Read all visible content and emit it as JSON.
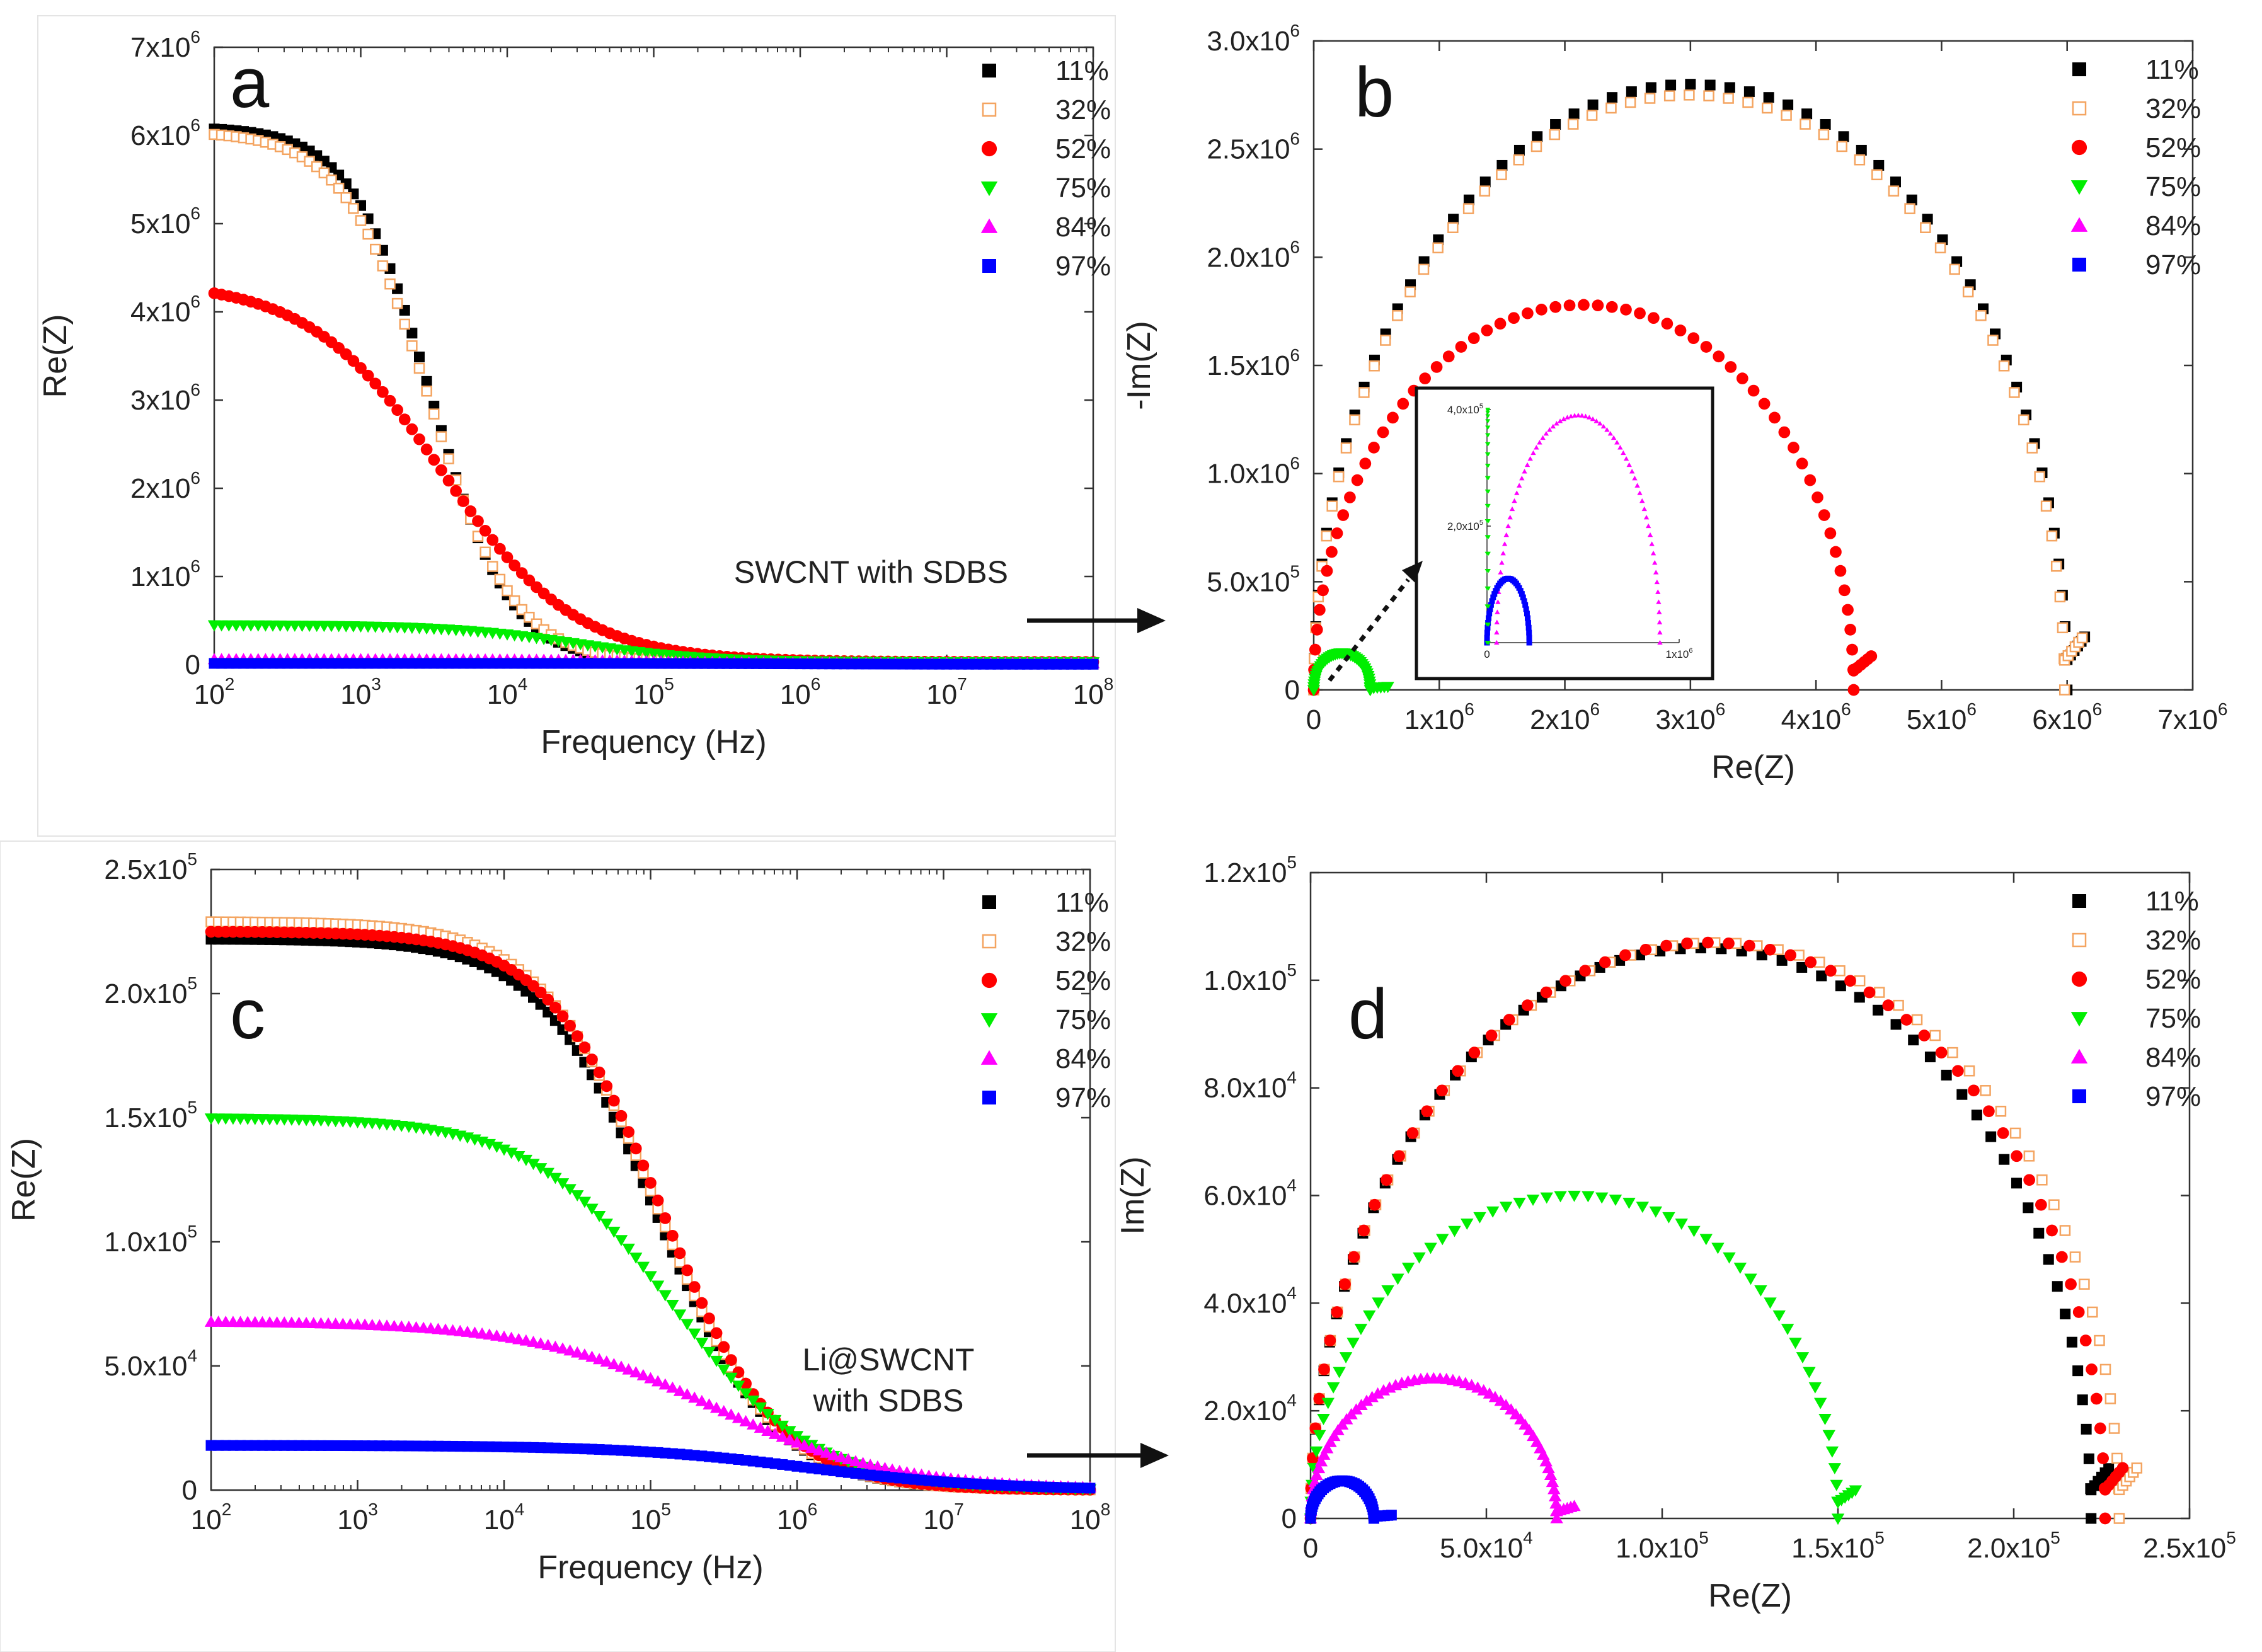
{
  "chart_data": [
    {
      "panel": "a",
      "type": "scatter",
      "xscale": "log",
      "xlabel": "Frequency (Hz)",
      "ylabel": "Re(Z)",
      "xlim": [
        100,
        100000000
      ],
      "ylim": [
        0,
        7000000
      ],
      "xticks": [
        {
          "base": "10",
          "exp": "2"
        },
        {
          "base": "10",
          "exp": "3"
        },
        {
          "base": "10",
          "exp": "4"
        },
        {
          "base": "10",
          "exp": "5"
        },
        {
          "base": "10",
          "exp": "6"
        },
        {
          "base": "10",
          "exp": "7"
        },
        {
          "base": "10",
          "exp": "8"
        }
      ],
      "yticks": [
        {
          "v": 0,
          "m": "0",
          "e": ""
        },
        {
          "v": 1000000,
          "m": "1x10",
          "e": "6"
        },
        {
          "v": 2000000,
          "m": "2x10",
          "e": "6"
        },
        {
          "v": 3000000,
          "m": "3x10",
          "e": "6"
        },
        {
          "v": 4000000,
          "m": "4x10",
          "e": "6"
        },
        {
          "v": 5000000,
          "m": "5x10",
          "e": "6"
        },
        {
          "v": 6000000,
          "m": "6x10",
          "e": "6"
        },
        {
          "v": 7000000,
          "m": "7x10",
          "e": "6"
        }
      ],
      "legend": [
        "11%",
        "32%",
        "52%",
        "75%",
        "84%",
        "97%"
      ],
      "series": [
        {
          "name": "11%",
          "R0": 6100000,
          "Rinf": 20000,
          "fc": 3000,
          "n": 1.6
        },
        {
          "name": "32%",
          "R0": 6050000,
          "Rinf": 25000,
          "fc": 2900,
          "n": 1.5
        },
        {
          "name": "52%",
          "R0": 4350000,
          "Rinf": 30000,
          "fc": 3600,
          "n": 0.95
        },
        {
          "name": "75%",
          "R0": 450000,
          "Rinf": 30000,
          "fc": 30000,
          "n": 1.0
        },
        {
          "name": "84%",
          "R0": 60000,
          "Rinf": 15000,
          "fc": 100000,
          "n": 1.0
        },
        {
          "name": "97%",
          "R0": 15000,
          "Rinf": 5000,
          "fc": 1000000,
          "n": 1.0
        }
      ]
    },
    {
      "panel": "b",
      "type": "scatter",
      "xlabel": "Re(Z)",
      "ylabel": "-Im(Z)",
      "xlim": [
        0,
        7000000
      ],
      "ylim": [
        0,
        3000000
      ],
      "xticks": [
        {
          "v": 0,
          "m": "0",
          "e": ""
        },
        {
          "v": 1000000,
          "m": "1x10",
          "e": "6"
        },
        {
          "v": 2000000,
          "m": "2x10",
          "e": "6"
        },
        {
          "v": 3000000,
          "m": "3x10",
          "e": "6"
        },
        {
          "v": 4000000,
          "m": "4x10",
          "e": "6"
        },
        {
          "v": 5000000,
          "m": "5x10",
          "e": "6"
        },
        {
          "v": 6000000,
          "m": "6x10",
          "e": "6"
        },
        {
          "v": 7000000,
          "m": "7x10",
          "e": "6"
        }
      ],
      "yticks": [
        {
          "v": 0,
          "m": "0",
          "e": ""
        },
        {
          "v": 500000,
          "m": "5.0x10",
          "e": "5"
        },
        {
          "v": 1000000,
          "m": "1.0x10",
          "e": "6"
        },
        {
          "v": 1500000,
          "m": "1.5x10",
          "e": "6"
        },
        {
          "v": 2000000,
          "m": "2.0x10",
          "e": "6"
        },
        {
          "v": 2500000,
          "m": "2.5x10",
          "e": "6"
        },
        {
          "v": 3000000,
          "m": "3.0x10",
          "e": "6"
        }
      ],
      "legend": [
        "11%",
        "32%",
        "52%",
        "75%",
        "84%",
        "97%"
      ],
      "series": [
        {
          "name": "11%",
          "x0": 0,
          "x1": 6000000,
          "peak": 2800000
        },
        {
          "name": "32%",
          "x0": 0,
          "x1": 5980000,
          "peak": 2750000
        },
        {
          "name": "52%",
          "x0": 0,
          "x1": 4300000,
          "peak": 1780000
        },
        {
          "name": "75%",
          "x0": 0,
          "x1": 450000,
          "peak": 170000
        }
      ],
      "inset": {
        "xlim": [
          0,
          1000000
        ],
        "ylim": [
          0,
          400000
        ],
        "xticks": [
          {
            "v": 0,
            "m": "0",
            "e": ""
          },
          {
            "v": 1000000,
            "m": "1x10",
            "e": "6"
          }
        ],
        "yticks": [
          {
            "v": 200000,
            "m": "2,0x10",
            "e": "5"
          },
          {
            "v": 400000,
            "m": "4,0x10",
            "e": "5"
          }
        ],
        "series": [
          {
            "name": "84%",
            "x0": 50000,
            "x1": 900000,
            "peak": 390000
          },
          {
            "name": "97%",
            "x0": 0,
            "x1": 220000,
            "peak": 110000
          },
          {
            "name": "75%",
            "x0": 0,
            "x1": 40000,
            "peak": 400000
          }
        ]
      },
      "annotation": "SWCNT with SDBS"
    },
    {
      "panel": "c",
      "type": "scatter",
      "xscale": "log",
      "xlabel": "Frequency (Hz)",
      "ylabel": "Re(Z)",
      "xlim": [
        100,
        100000000
      ],
      "ylim": [
        0,
        250000
      ],
      "xticks": [
        {
          "base": "10",
          "exp": "2"
        },
        {
          "base": "10",
          "exp": "3"
        },
        {
          "base": "10",
          "exp": "4"
        },
        {
          "base": "10",
          "exp": "5"
        },
        {
          "base": "10",
          "exp": "6"
        },
        {
          "base": "10",
          "exp": "7"
        },
        {
          "base": "10",
          "exp": "8"
        }
      ],
      "yticks": [
        {
          "v": 0,
          "m": "0",
          "e": ""
        },
        {
          "v": 50000,
          "m": "5.0x10",
          "e": "4"
        },
        {
          "v": 100000,
          "m": "1.0x10",
          "e": "5"
        },
        {
          "v": 150000,
          "m": "1.5x10",
          "e": "5"
        },
        {
          "v": 200000,
          "m": "2.0x10",
          "e": "5"
        },
        {
          "v": 250000,
          "m": "2.5x10",
          "e": "5"
        }
      ],
      "legend": [
        "11%",
        "32%",
        "52%",
        "75%",
        "84%",
        "97%"
      ],
      "series": [
        {
          "name": "11%",
          "R0": 222000,
          "Rinf": 0,
          "fc": 110000,
          "n": 1.1
        },
        {
          "name": "32%",
          "R0": 229000,
          "Rinf": 0,
          "fc": 110000,
          "n": 1.1
        },
        {
          "name": "52%",
          "R0": 225000,
          "Rinf": 0,
          "fc": 120000,
          "n": 1.1
        },
        {
          "name": "75%",
          "R0": 150000,
          "Rinf": 0,
          "fc": 140000,
          "n": 0.9
        },
        {
          "name": "84%",
          "R0": 68000,
          "Rinf": 0,
          "fc": 260000,
          "n": 0.7
        },
        {
          "name": "97%",
          "R0": 18000,
          "Rinf": 0,
          "fc": 1200000,
          "n": 0.7
        }
      ],
      "annotation": [
        "Li@SWCNT",
        "with SDBS"
      ]
    },
    {
      "panel": "d",
      "type": "scatter",
      "xlabel": "Re(Z)",
      "ylabel": "Im(Z)",
      "xlim": [
        0,
        250000
      ],
      "ylim": [
        0,
        120000
      ],
      "xticks": [
        {
          "v": 0,
          "m": "0",
          "e": ""
        },
        {
          "v": 50000,
          "m": "5.0x10",
          "e": "4"
        },
        {
          "v": 100000,
          "m": "1.0x10",
          "e": "5"
        },
        {
          "v": 150000,
          "m": "1.5x10",
          "e": "5"
        },
        {
          "v": 200000,
          "m": "2.0x10",
          "e": "5"
        },
        {
          "v": 250000,
          "m": "2.5x10",
          "e": "5"
        }
      ],
      "yticks": [
        {
          "v": 0,
          "m": "0",
          "e": ""
        },
        {
          "v": 20000,
          "m": "2.0x10",
          "e": "4"
        },
        {
          "v": 40000,
          "m": "4.0x10",
          "e": "4"
        },
        {
          "v": 60000,
          "m": "6.0x10",
          "e": "4"
        },
        {
          "v": 80000,
          "m": "8.0x10",
          "e": "4"
        },
        {
          "v": 100000,
          "m": "1.0x10",
          "e": "5"
        },
        {
          "v": 120000,
          "m": "1.2x10",
          "e": "5"
        }
      ],
      "legend": [
        "11%",
        "32%",
        "52%",
        "75%",
        "84%",
        "97%"
      ],
      "series": [
        {
          "name": "11%",
          "x0": 0,
          "x1": 222000,
          "peak": 106000
        },
        {
          "name": "32%",
          "x0": 0,
          "x1": 230000,
          "peak": 107000
        },
        {
          "name": "52%",
          "x0": 0,
          "x1": 226000,
          "peak": 107000
        },
        {
          "name": "75%",
          "x0": 0,
          "x1": 150000,
          "peak": 60000
        },
        {
          "name": "84%",
          "x0": 0,
          "x1": 70000,
          "peak": 26000
        },
        {
          "name": "97%",
          "x0": 0,
          "x1": 18000,
          "peak": 7000
        }
      ]
    }
  ],
  "panel_letters": [
    "a",
    "b",
    "c",
    "d"
  ],
  "colors": {
    "11%": "#000000",
    "32%": "#f4a460",
    "52%": "#ff0000",
    "75%": "#00ee00",
    "84%": "#ff00ff",
    "97%": "#0000ff",
    "97b": "#0a3cff"
  }
}
